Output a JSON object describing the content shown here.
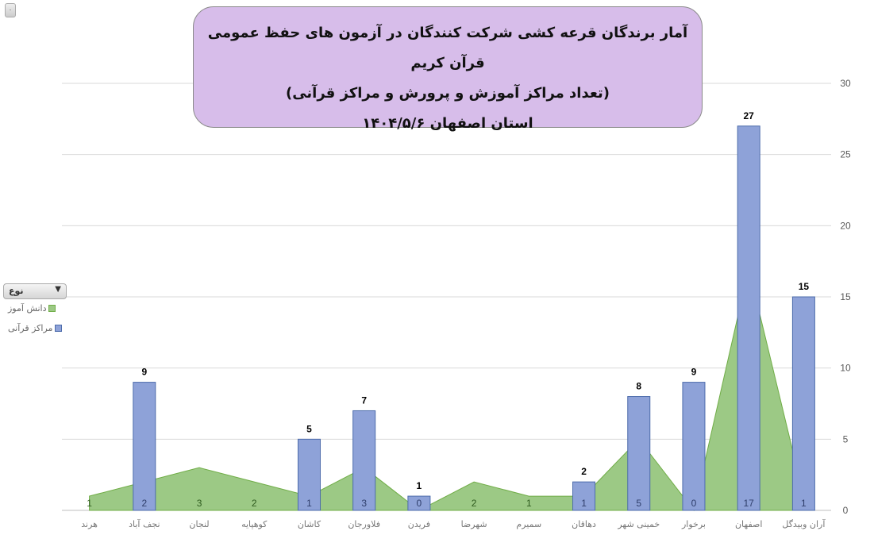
{
  "title": {
    "line1": "آمار برندگان قرعه کشی شرکت کنندگان در آزمون های حفظ عمومی قرآن کریم",
    "line2": "(تعداد مراکز آموزش و پرورش و مراکز قرآنی)",
    "line3": "استان اصفهان  ۱۴۰۴/۵/۶"
  },
  "filter": {
    "label": "نوع",
    "icon": "dropdown-arrow-icon"
  },
  "corner_button": {
    "label": "٠"
  },
  "colors": {
    "area_fill": "#9cc985",
    "area_line": "#70ad47",
    "bar_fill": "#8ea2d8",
    "bar_border": "#4d6cab",
    "grid": "#d9d9d9"
  },
  "chart_data": {
    "type": "bar+area",
    "categories": [
      "هرند",
      "نجف آباد",
      "لنجان",
      "کوهپایه",
      "کاشان",
      "فلاورجان",
      "فریدن",
      "شهرضا",
      "سمیرم",
      "دهاقان",
      "خمینی شهر",
      "برخوار",
      "اصفهان",
      "آران وبیدگل"
    ],
    "series": [
      {
        "name": "دانش آموز",
        "type": "area",
        "values": [
          1,
          2,
          3,
          2,
          1,
          3,
          0,
          2,
          1,
          1,
          5,
          0,
          17,
          1
        ]
      },
      {
        "name": "مراکز قرآنی",
        "type": "bar",
        "values": [
          null,
          9,
          null,
          null,
          5,
          7,
          1,
          null,
          null,
          2,
          8,
          9,
          27,
          15
        ]
      }
    ],
    "ylim": [
      0,
      30
    ],
    "yticks": [
      0,
      5,
      10,
      15,
      20,
      25,
      30
    ],
    "y_axis_side": "right",
    "grid": true,
    "legend": "left"
  }
}
